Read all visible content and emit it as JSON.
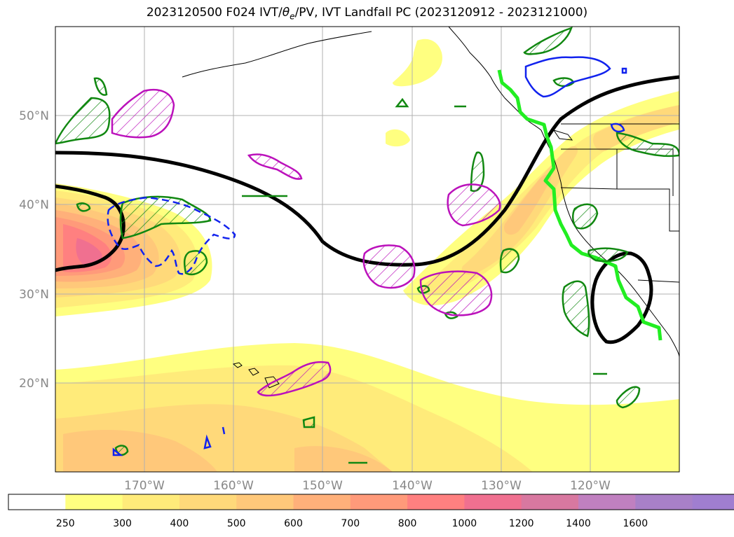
{
  "title": {
    "prefix": "2023120500 F024 IVT/",
    "theta": "θ",
    "theta_sub": "e",
    "suffix": "/PV, IVT Landfall PC (2023120912 - 2023121000)"
  },
  "map": {
    "lon_labels": [
      "170°W",
      "160°W",
      "150°W",
      "140°W",
      "130°W",
      "120°W"
    ],
    "lat_labels": [
      "50°N",
      "40°N",
      "30°N",
      "20°N"
    ],
    "grid": true
  },
  "colorbar": {
    "levels": [
      "250",
      "300",
      "400",
      "500",
      "600",
      "700",
      "800",
      "1000",
      "1200",
      "1400",
      "1600"
    ],
    "colors": [
      "#ffffff",
      "#ffff80",
      "#ffeb7a",
      "#ffd97a",
      "#ffc87a",
      "#ffb07a",
      "#ff9a7a",
      "#ff8080",
      "#f07090",
      "#d878a0",
      "#c080c0",
      "#a880c8",
      "#a07ed0"
    ],
    "extend": "max"
  },
  "legend_colors": {
    "mean_trajectory": "#000000",
    "landfall_line": "#22ee22",
    "pv_green": "#118811",
    "theta_magenta": "#bb11bb",
    "blue_contour": "#1122ee",
    "coast": "#000000"
  }
}
